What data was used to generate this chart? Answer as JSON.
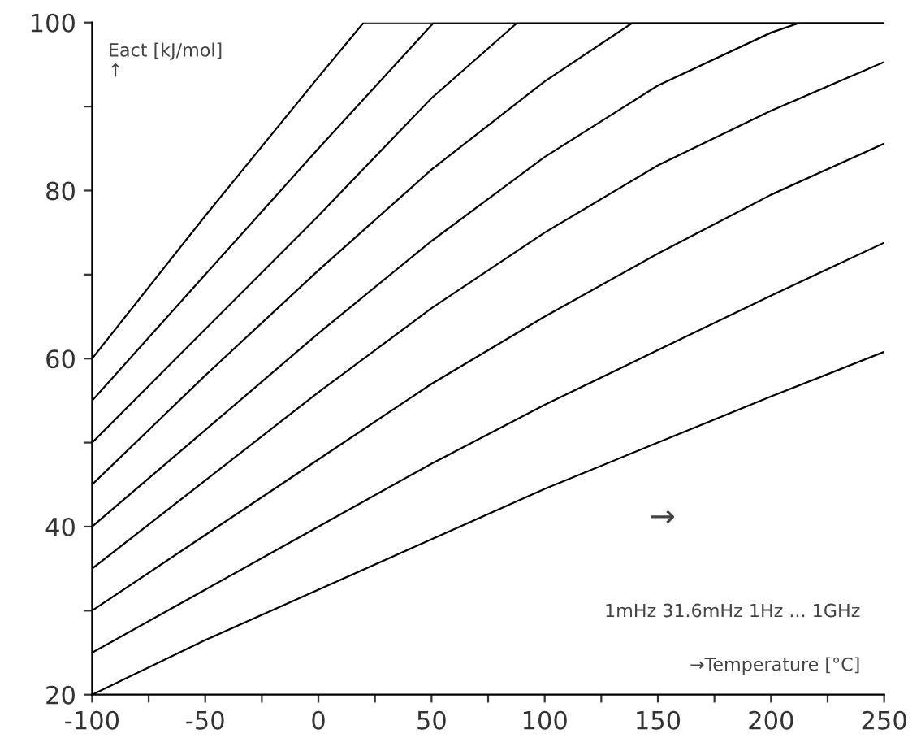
{
  "chart_data": {
    "type": "line",
    "ylabel": "Eact [kJ/mol]\n↑",
    "xlabel": "→Temperature [°C]",
    "annotations": [
      "→",
      "1mHz 31.6mHz 1Hz ... 1GHz"
    ],
    "xlim": [
      -100,
      250
    ],
    "ylim": [
      20,
      100
    ],
    "xticks": [
      -100,
      {
        "value": -75,
        "label": null
      },
      -50,
      {
        "value": -25,
        "label": null
      },
      0,
      {
        "value": 25,
        "label": null
      },
      50,
      {
        "value": 75,
        "label": null
      },
      100,
      {
        "value": 125,
        "label": null
      },
      150,
      {
        "value": 175,
        "label": null
      },
      200,
      {
        "value": 225,
        "label": null
      },
      250
    ],
    "yticks": [
      20,
      {
        "value": 30,
        "label": null
      },
      40,
      {
        "value": 50,
        "label": null
      },
      60,
      {
        "value": 70,
        "label": null
      },
      80,
      {
        "value": 90,
        "label": null
      },
      100
    ],
    "grid": false,
    "legend": false,
    "marker": "none",
    "line_style": "solid",
    "series": [
      {
        "color": "#000000",
        "x": [
          -100,
          -50,
          0,
          50,
          100,
          150,
          200,
          250
        ],
        "values": [
          20,
          26.5,
          32.5,
          38.5,
          44.5,
          50,
          55.5,
          60.8
        ]
      },
      {
        "color": "#000000",
        "x": [
          -100,
          -50,
          0,
          50,
          100,
          150,
          200,
          250
        ],
        "values": [
          25,
          32.5,
          40,
          47.5,
          54.5,
          61,
          67.5,
          73.8
        ]
      },
      {
        "color": "#000000",
        "x": [
          -100,
          -50,
          0,
          50,
          100,
          150,
          200,
          250
        ],
        "values": [
          30,
          39,
          48,
          57,
          65,
          72.5,
          79.5,
          85.6
        ]
      },
      {
        "color": "#000000",
        "x": [
          -100,
          -50,
          0,
          50,
          100,
          150,
          200,
          250
        ],
        "values": [
          35,
          45.5,
          56,
          66,
          75,
          83,
          89.5,
          95.3
        ]
      },
      {
        "color": "#000000",
        "x": [
          -100,
          -50,
          0,
          50,
          100,
          150,
          200,
          213,
          250
        ],
        "values": [
          40,
          51.5,
          63,
          74,
          84,
          92.5,
          98.8,
          100,
          100
        ]
      },
      {
        "color": "#000000",
        "x": [
          -100,
          -50,
          0,
          50,
          100,
          139,
          250
        ],
        "values": [
          45,
          58,
          70.5,
          82.5,
          93,
          100,
          100
        ]
      },
      {
        "color": "#000000",
        "x": [
          -100,
          -50,
          0,
          50,
          88,
          250
        ],
        "values": [
          50,
          63.5,
          77,
          91,
          100,
          100
        ]
      },
      {
        "color": "#000000",
        "x": [
          -100,
          -50,
          0,
          51,
          250
        ],
        "values": [
          55,
          70,
          85,
          100,
          100
        ]
      },
      {
        "color": "#000000",
        "x": [
          -100,
          -50,
          0,
          20,
          250
        ],
        "values": [
          60,
          77,
          93.5,
          100,
          100
        ]
      }
    ]
  }
}
